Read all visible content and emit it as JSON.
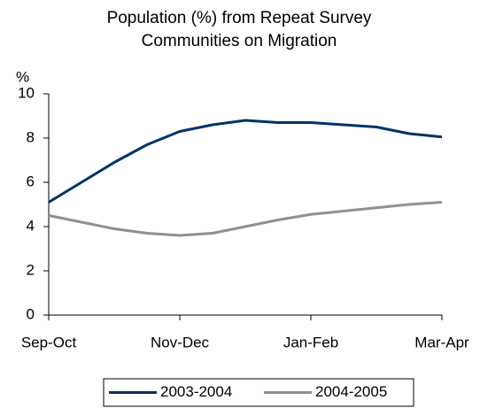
{
  "chart_data": {
    "type": "line",
    "title": "Population (%) from Repeat Survey Communities on Migration",
    "y_label": "%",
    "categories": [
      "Sep-Oct",
      null,
      null,
      null,
      "Nov-Dec",
      null,
      null,
      null,
      "Jan-Feb",
      null,
      null,
      null,
      "Mar-Apr"
    ],
    "series": [
      {
        "name": "2003-2004",
        "color": "#003366",
        "values": [
          5.1,
          6.0,
          6.9,
          7.7,
          8.3,
          8.6,
          8.8,
          8.7,
          8.7,
          8.6,
          8.5,
          8.2,
          8.05
        ]
      },
      {
        "name": "2004-2005",
        "color": "#909090",
        "values": [
          4.5,
          4.2,
          3.9,
          3.7,
          3.6,
          3.7,
          4.0,
          4.3,
          4.55,
          4.7,
          4.85,
          5.0,
          5.1
        ]
      }
    ],
    "ylim": [
      0,
      10
    ],
    "yticks": [
      0,
      2,
      4,
      6,
      8,
      10
    ],
    "legend": "bottom"
  }
}
